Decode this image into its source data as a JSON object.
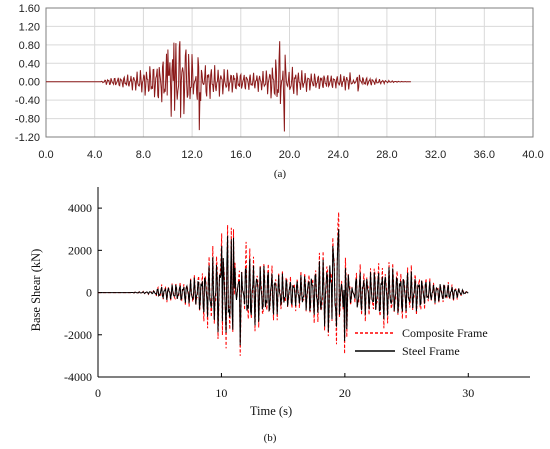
{
  "chart_data": [
    {
      "type": "line",
      "caption": "(a)",
      "title": "",
      "xlabel": "",
      "ylabel": "",
      "xlim": [
        0,
        40
      ],
      "ylim": [
        -1.2,
        1.6
      ],
      "xticks": [
        "0.0",
        "4.0",
        "8.0",
        "12.0",
        "16.0",
        "20.0",
        "24.0",
        "28.0",
        "32.0",
        "36.0",
        "40.0"
      ],
      "yticks": [
        "1.60",
        "1.20",
        "0.80",
        "0.40",
        "0.00",
        "-0.40",
        "-0.80",
        "-1.20"
      ],
      "grid": true,
      "colors": {
        "line": "#8b1a1a",
        "grid": "#d9d9d9",
        "frame": "#7f7f7f"
      },
      "series": [
        {
          "x": [
            0,
            4.5,
            5.0,
            6.0,
            7.0,
            8.0,
            9.0,
            10.0,
            10.5,
            11.0,
            11.5,
            12.0,
            12.6,
            13.0,
            14.0,
            15.0,
            16.0,
            17.0,
            18.0,
            18.8,
            19.2,
            19.6,
            20.0,
            21.0,
            22.0,
            23.0,
            24.0,
            25.0,
            25.7,
            26.0,
            27.0,
            28.0,
            29.0,
            30.0
          ],
          "y": [
            0,
            0,
            0.08,
            0.12,
            0.18,
            0.3,
            0.45,
            0.7,
            0.85,
            0.88,
            0.7,
            0.6,
            -1.05,
            0.45,
            0.35,
            0.28,
            0.22,
            0.2,
            0.25,
            0.5,
            0.88,
            -1.08,
            0.4,
            0.25,
            0.2,
            0.18,
            0.15,
            0.22,
            -0.3,
            0.12,
            0.08,
            0.03,
            0.01,
            0
          ]
        }
      ]
    },
    {
      "type": "line",
      "caption": "(b)",
      "title": "",
      "xlabel": "Time (s)",
      "ylabel": "Base Shear (kN)",
      "xlim": [
        0,
        35
      ],
      "ylim": [
        -4000,
        5000
      ],
      "xticks": [
        "0",
        "10",
        "20",
        "30"
      ],
      "yticks": [
        "4000",
        "2000",
        "0",
        "-2000",
        "-4000"
      ],
      "grid": false,
      "legend": "lower-right",
      "series": [
        {
          "name": "Composite Frame",
          "color": "#ff0000",
          "style": "dashed",
          "x": [
            0,
            2.5,
            4.5,
            5.0,
            6.0,
            7.0,
            8.0,
            9.0,
            10.0,
            10.5,
            11.0,
            11.5,
            12.0,
            13.0,
            14.0,
            15.0,
            16.0,
            17.0,
            18.0,
            19.0,
            19.5,
            20.0,
            21.0,
            22.0,
            23.0,
            24.0,
            25.0,
            26.0,
            27.0,
            28.0,
            29.0,
            30.0
          ],
          "y": [
            0,
            0,
            100,
            400,
            500,
            600,
            1000,
            2000,
            2800,
            3200,
            3000,
            -3000,
            2400,
            1800,
            1600,
            1100,
            900,
            1200,
            2000,
            2600,
            3800,
            -2900,
            1500,
            1300,
            1800,
            1500,
            1400,
            1200,
            600,
            600,
            400,
            0
          ]
        },
        {
          "name": "Steel Frame",
          "color": "#000000",
          "style": "solid",
          "x": [
            0,
            2.5,
            4.5,
            5.0,
            6.0,
            7.0,
            8.0,
            9.0,
            10.0,
            10.5,
            11.0,
            11.5,
            12.0,
            13.0,
            14.0,
            15.0,
            16.0,
            17.0,
            18.0,
            19.0,
            19.5,
            20.0,
            21.0,
            22.0,
            23.0,
            24.0,
            25.0,
            26.0,
            27.0,
            28.0,
            29.0,
            30.0
          ],
          "y": [
            0,
            0,
            80,
            300,
            400,
            500,
            800,
            1500,
            2200,
            2700,
            2600,
            -2500,
            2000,
            1500,
            1300,
            900,
            700,
            1000,
            1600,
            2200,
            3000,
            -2300,
            1200,
            1000,
            1400,
            1200,
            1100,
            900,
            500,
            500,
            300,
            0
          ]
        }
      ]
    }
  ]
}
